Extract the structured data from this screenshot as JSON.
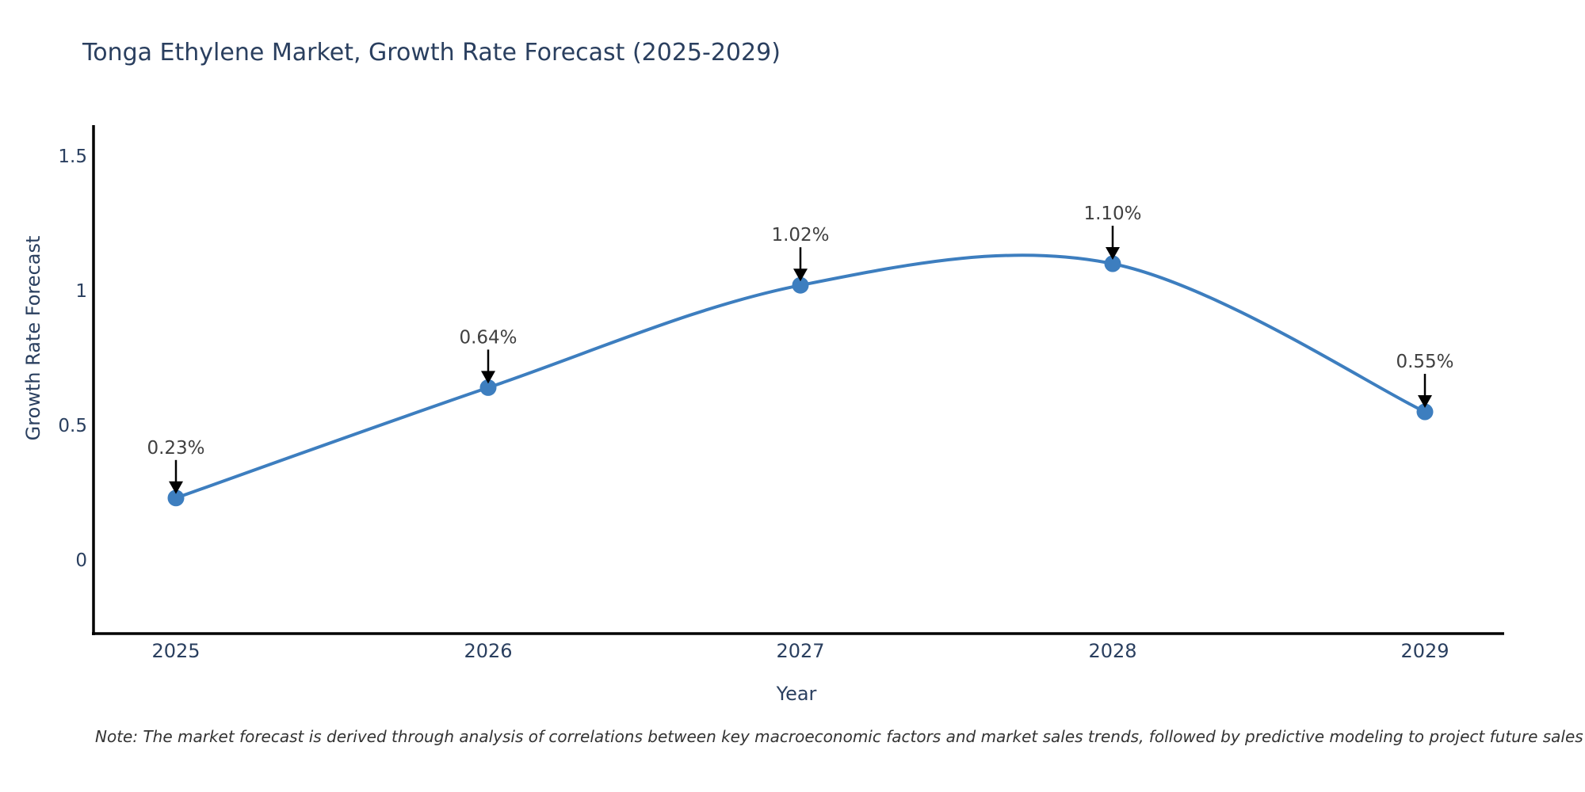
{
  "title": "Tonga Ethylene Market, Growth Rate Forecast (2025-2029)",
  "note": "Note: The market forecast is derived through analysis of correlations between key macroeconomic factors and market sales trends, followed by predictive modeling to project future sales",
  "chart_data": {
    "type": "line",
    "title": "Tonga Ethylene Market, Growth Rate Forecast (2025-2029)",
    "xlabel": "Year",
    "ylabel": "Growth Rate Forecast",
    "categories": [
      "2025",
      "2026",
      "2027",
      "2028",
      "2029"
    ],
    "values": [
      0.23,
      0.64,
      1.02,
      1.1,
      0.55
    ],
    "point_labels": [
      "0.23%",
      "0.64%",
      "1.02%",
      "1.10%",
      "0.55%"
    ],
    "ytick_values": [
      0,
      0.5,
      1,
      1.5
    ],
    "ytick_labels": [
      "0",
      "0.5",
      "1",
      "1.5"
    ],
    "ylim": [
      -0.27,
      1.61
    ],
    "line_shape": "spline",
    "markers": true,
    "grid": false,
    "legend": "none",
    "colors": {
      "line": "#3d7ebf",
      "marker": "#3d7ebf",
      "axis_line": "#000000",
      "axis_text": "#2a3f5f",
      "annotation_text": "#404040",
      "annotation_arrow": "#000000",
      "background": "#ffffff"
    }
  }
}
